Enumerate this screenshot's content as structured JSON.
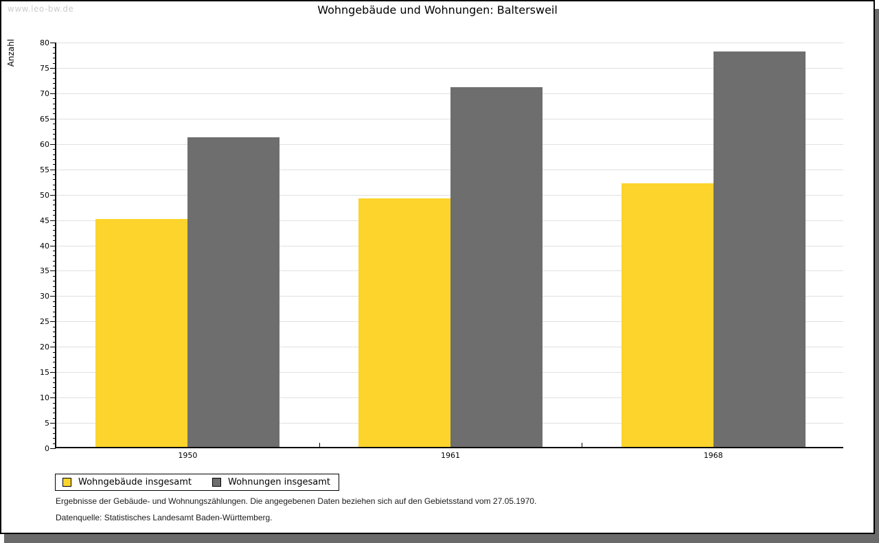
{
  "page": {
    "watermark": "www.leo-bw.de",
    "title": "Wohngebäude und Wohnungen: Baltersweil"
  },
  "chart_data": {
    "type": "bar",
    "title": "Wohngebäude und Wohnungen: Baltersweil",
    "ylabel": "Anzahl",
    "xlabel": "",
    "categories": [
      "1950",
      "1961",
      "1968"
    ],
    "series": [
      {
        "name": "Wohngebäude insgesamt",
        "color": "#FCD42C",
        "values": [
          45,
          49,
          52
        ]
      },
      {
        "name": "Wohnungen insgesamt",
        "color": "#6E6E6E",
        "values": [
          61,
          71,
          78
        ]
      }
    ],
    "ylim": [
      0,
      80
    ],
    "ytick_step": 5,
    "minor_tick_step": 1,
    "grid": "horizontal",
    "legend_position": "bottom-left"
  },
  "footnotes": {
    "line1": "Ergebnisse der Gebäude- und Wohnungszählungen. Die angegebenen Daten beziehen sich auf den Gebietsstand vom 27.05.1970.",
    "line2": "Datenquelle: Statistisches Landesamt Baden-Württemberg."
  },
  "colors": {
    "background": "#FFFFFF",
    "frame_border": "#000000",
    "shadow": "#6A6A6A",
    "grid": "#E0E0E0",
    "axis": "#000000",
    "watermark": "#CCCCCC"
  }
}
